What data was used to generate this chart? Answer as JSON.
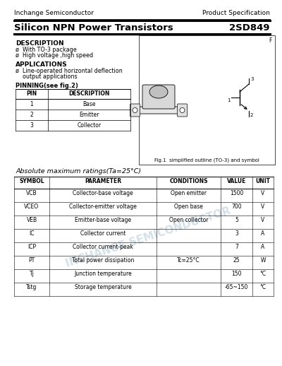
{
  "bg_color": "#ffffff",
  "header_company": "Inchange Semiconductor",
  "header_right": "Product Specification",
  "title_left": "Silicon NPN Power Transistors",
  "title_right": "2SD849",
  "description_title": "DESCRIPTION",
  "description_items": [
    "ø  With TO-3 package",
    "ø  High voltage ,high speed"
  ],
  "applications_title": "APPLICATIONS",
  "applications_items": [
    "ø  Line-operated horizontal deflection",
    "    output applications"
  ],
  "pinning_title": "PINNING(see fig.2)",
  "pin_headers": [
    "PIN",
    "DESCRIPTION"
  ],
  "pin_rows": [
    [
      "1",
      "Base"
    ],
    [
      "2",
      "Emitter"
    ],
    [
      "3",
      "Collector"
    ]
  ],
  "fig_label_f": "F",
  "fig_caption": "Fig.1  simplified outline (TO-3) and symbol",
  "abs_max_title": "Absolute maximum ratings(Ta=25°C)",
  "table_headers": [
    "SYMBOL",
    "PARAMETER",
    "CONDITIONS",
    "VALUE",
    "UNIT"
  ],
  "table_rows": [
    [
      "VCB",
      "Collector-base voltage",
      "Open emitter",
      "1500",
      "V"
    ],
    [
      "VCEO",
      "Collector-emitter voltage",
      "Open base",
      "700",
      "V"
    ],
    [
      "VEB",
      "Emitter-base voltage",
      "Open collector",
      "5",
      "V"
    ],
    [
      "IC",
      "Collector current",
      "",
      "3",
      "A"
    ],
    [
      "ICP",
      "Collector current-peak",
      "",
      "7",
      "A"
    ],
    [
      "PT",
      "Total power dissipation",
      "Tc=25°C",
      "25",
      "W"
    ],
    [
      "Tj",
      "Junction temperature",
      "",
      "150",
      "°C"
    ],
    [
      "Tstg",
      "Storage temperature",
      "",
      "-65~150",
      "°C"
    ]
  ],
  "watermark_text": "INCHANGE SEMICONDUCTOR",
  "watermark_color": "#b8ccd8",
  "line_color": "#000000",
  "text_color": "#000000"
}
